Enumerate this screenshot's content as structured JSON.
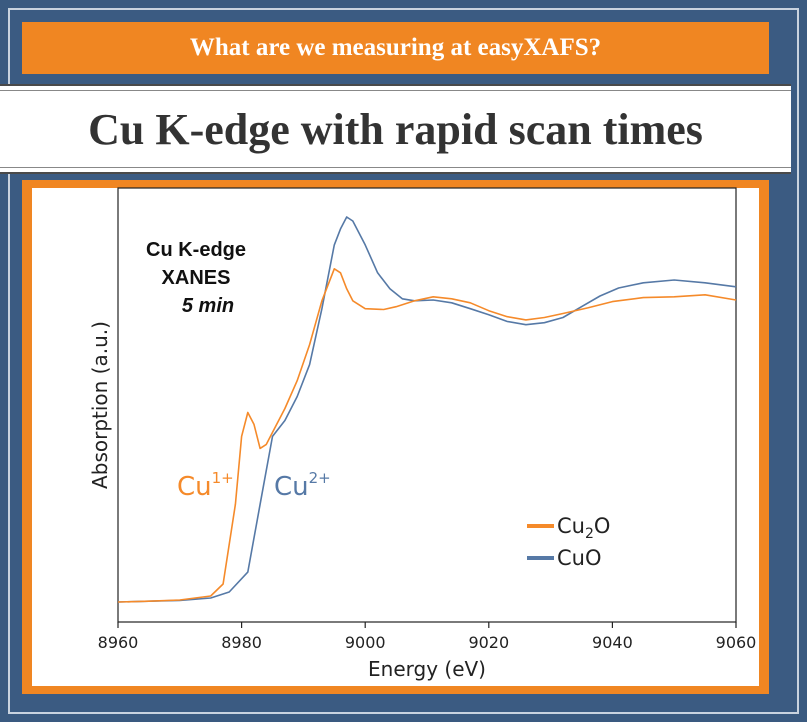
{
  "header": {
    "banner": "What are we measuring at easyXAFS?",
    "title": "Cu K-edge with rapid scan times"
  },
  "chart_data": {
    "type": "line",
    "inset_text": {
      "line1": "Cu K-edge",
      "line2": "XANES",
      "line3": "5 min"
    },
    "xlabel": "Energy (eV)",
    "ylabel": "Absorption (a.u.)",
    "xlim": [
      8960,
      9060
    ],
    "ylim": [
      0,
      1
    ],
    "x_ticks": [
      8960,
      8980,
      9000,
      9020,
      9040,
      9060
    ],
    "grid": false,
    "legend_position": "lower-right",
    "labels": {
      "cu1": {
        "base": "Cu",
        "sup": "1+"
      },
      "cu2": {
        "base": "Cu",
        "sup": "2+"
      }
    },
    "colors": {
      "cu2o": "#f58a2a",
      "cuo": "#5679a6"
    },
    "series": [
      {
        "name": "Cu2O",
        "legend_base": "Cu",
        "legend_sub": "2",
        "legend_tail": "O",
        "points": [
          [
            8960,
            0.005
          ],
          [
            8965,
            0.007
          ],
          [
            8970,
            0.01
          ],
          [
            8975,
            0.02
          ],
          [
            8977,
            0.05
          ],
          [
            8979,
            0.25
          ],
          [
            8980,
            0.42
          ],
          [
            8981,
            0.48
          ],
          [
            8982,
            0.45
          ],
          [
            8983,
            0.39
          ],
          [
            8984,
            0.4
          ],
          [
            8985,
            0.43
          ],
          [
            8987,
            0.49
          ],
          [
            8989,
            0.56
          ],
          [
            8991,
            0.65
          ],
          [
            8993,
            0.76
          ],
          [
            8995,
            0.84
          ],
          [
            8996,
            0.83
          ],
          [
            8997,
            0.79
          ],
          [
            8998,
            0.76
          ],
          [
            9000,
            0.74
          ],
          [
            9003,
            0.738
          ],
          [
            9005,
            0.745
          ],
          [
            9008,
            0.76
          ],
          [
            9011,
            0.77
          ],
          [
            9014,
            0.765
          ],
          [
            9017,
            0.755
          ],
          [
            9020,
            0.735
          ],
          [
            9023,
            0.72
          ],
          [
            9026,
            0.712
          ],
          [
            9029,
            0.718
          ],
          [
            9032,
            0.728
          ],
          [
            9036,
            0.742
          ],
          [
            9040,
            0.758
          ],
          [
            9045,
            0.768
          ],
          [
            9050,
            0.77
          ],
          [
            9055,
            0.775
          ],
          [
            9060,
            0.762
          ]
        ]
      },
      {
        "name": "CuO",
        "legend_base": "CuO",
        "legend_sub": "",
        "legend_tail": "",
        "points": [
          [
            8960,
            0.005
          ],
          [
            8965,
            0.007
          ],
          [
            8970,
            0.009
          ],
          [
            8975,
            0.015
          ],
          [
            8978,
            0.03
          ],
          [
            8981,
            0.08
          ],
          [
            8983,
            0.25
          ],
          [
            8985,
            0.42
          ],
          [
            8987,
            0.46
          ],
          [
            8989,
            0.52
          ],
          [
            8991,
            0.6
          ],
          [
            8993,
            0.74
          ],
          [
            8995,
            0.9
          ],
          [
            8996,
            0.94
          ],
          [
            8997,
            0.97
          ],
          [
            8998,
            0.96
          ],
          [
            9000,
            0.9
          ],
          [
            9002,
            0.83
          ],
          [
            9004,
            0.79
          ],
          [
            9006,
            0.765
          ],
          [
            9008,
            0.76
          ],
          [
            9011,
            0.762
          ],
          [
            9014,
            0.755
          ],
          [
            9017,
            0.74
          ],
          [
            9020,
            0.725
          ],
          [
            9023,
            0.708
          ],
          [
            9026,
            0.7
          ],
          [
            9029,
            0.705
          ],
          [
            9032,
            0.718
          ],
          [
            9035,
            0.745
          ],
          [
            9038,
            0.772
          ],
          [
            9041,
            0.792
          ],
          [
            9045,
            0.805
          ],
          [
            9050,
            0.812
          ],
          [
            9055,
            0.805
          ],
          [
            9060,
            0.795
          ]
        ]
      }
    ]
  }
}
